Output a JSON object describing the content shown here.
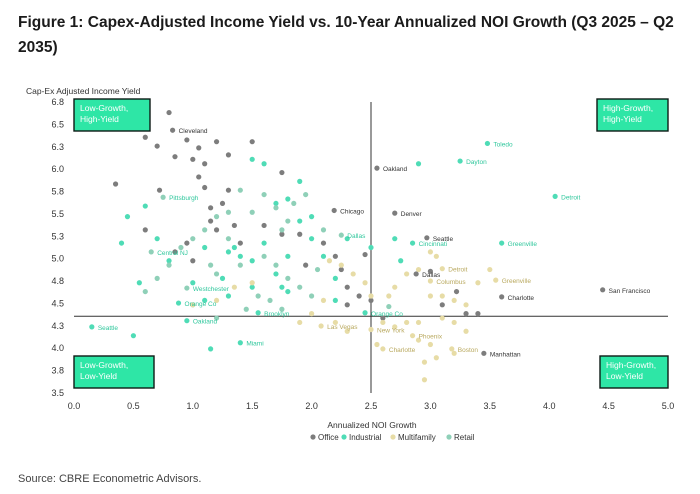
{
  "title": "Figure 1: Capex-Adjusted Income Yield vs. 10-Year Annualized NOI Growth (Q3 2025 – Q2 2035)",
  "source": "Source: CBRE Econometric Advisors.",
  "colors": {
    "Office": "#7d7d7d",
    "Industrial": "#4fdcb6",
    "Multifamily": "#e7dca6",
    "Retail": "#8fd0b8",
    "quadrant_fill": "#2ee6a6",
    "quadrant_border": "#0d1b16",
    "axis": "#333333"
  },
  "chart_data": {
    "type": "scatter",
    "xlabel": "Annualized NOI Growth",
    "ylabel": "Cap-Ex Adjusted Income Yield",
    "xlim": [
      0,
      5
    ],
    "ylim": [
      3.5,
      6.8
    ],
    "xticks": [
      "0.0",
      "0.5",
      "1.0",
      "1.5",
      "2.0",
      "2.5",
      "3.0",
      "3.5",
      "4.0",
      "4.5",
      "5.0"
    ],
    "yticks": [
      "3.5",
      "3.8",
      "4.0",
      "4.3",
      "4.5",
      "4.8",
      "5.0",
      "5.3",
      "5.5",
      "5.8",
      "6.0",
      "6.3",
      "6.5",
      "6.8"
    ],
    "crosshair": {
      "x": 2.5,
      "y": 4.37
    },
    "legend": [
      "Office",
      "Industrial",
      "Multifamily",
      "Retail"
    ],
    "legend_position": "bottom",
    "quadrants": [
      {
        "label": "Low-Growth, High-Yield",
        "position": "top-left"
      },
      {
        "label": "High-Growth, High-Yield",
        "position": "top-right"
      },
      {
        "label": "Low-Growth, Low-Yield",
        "position": "bottom-left"
      },
      {
        "label": "High-Growth, Low-Yield",
        "position": "bottom-right"
      }
    ],
    "labeled_points": [
      {
        "name": "Cleveland",
        "series": "Office",
        "x": 0.83,
        "y": 6.48
      },
      {
        "name": "Oakland",
        "series": "Office",
        "x": 2.55,
        "y": 6.05
      },
      {
        "name": "Toledo",
        "series": "Industrial",
        "x": 3.48,
        "y": 6.33
      },
      {
        "name": "Dayton",
        "series": "Industrial",
        "x": 3.25,
        "y": 6.13
      },
      {
        "name": "Pittsburgh",
        "series": "Retail",
        "x": 0.75,
        "y": 5.72
      },
      {
        "name": "Detroit",
        "series": "Industrial",
        "x": 4.05,
        "y": 5.73
      },
      {
        "name": "Chicago",
        "series": "Office",
        "x": 2.19,
        "y": 5.57
      },
      {
        "name": "Denver",
        "series": "Office",
        "x": 2.7,
        "y": 5.54
      },
      {
        "name": "Dallas",
        "series": "Retail",
        "x": 2.25,
        "y": 5.29
      },
      {
        "name": "Seattle",
        "series": "Office",
        "x": 2.97,
        "y": 5.26
      },
      {
        "name": "Cincinnati",
        "series": "Industrial",
        "x": 2.85,
        "y": 5.2
      },
      {
        "name": "Greenville",
        "series": "Industrial",
        "x": 3.6,
        "y": 5.2
      },
      {
        "name": "Central NJ",
        "series": "Retail",
        "x": 0.65,
        "y": 5.1
      },
      {
        "name": "Detroit",
        "series": "Multifamily",
        "x": 3.1,
        "y": 4.91
      },
      {
        "name": "Dallas",
        "series": "Office",
        "x": 2.88,
        "y": 4.85
      },
      {
        "name": "Greenville",
        "series": "Multifamily",
        "x": 3.55,
        "y": 4.78
      },
      {
        "name": "Columbus",
        "series": "Multifamily",
        "x": 3.0,
        "y": 4.77
      },
      {
        "name": "San Francisco",
        "series": "Office",
        "x": 4.45,
        "y": 4.67
      },
      {
        "name": "Westchester",
        "series": "Retail",
        "x": 0.95,
        "y": 4.69
      },
      {
        "name": "Charlotte",
        "series": "Office",
        "x": 3.6,
        "y": 4.59
      },
      {
        "name": "Orange Co",
        "series": "Industrial",
        "x": 0.88,
        "y": 4.52
      },
      {
        "name": "Brooklyn",
        "series": "Industrial",
        "x": 1.55,
        "y": 4.41
      },
      {
        "name": "Orange Co",
        "series": "Industrial",
        "x": 2.45,
        "y": 4.41
      },
      {
        "name": "Seattle",
        "series": "Industrial",
        "x": 0.15,
        "y": 4.25
      },
      {
        "name": "Oakland",
        "series": "Industrial",
        "x": 0.95,
        "y": 4.32
      },
      {
        "name": "Las Vegas",
        "series": "Multifamily",
        "x": 2.08,
        "y": 4.26
      },
      {
        "name": "New York",
        "series": "Multifamily",
        "x": 2.5,
        "y": 4.22
      },
      {
        "name": "Phoenix",
        "series": "Multifamily",
        "x": 2.85,
        "y": 4.15
      },
      {
        "name": "Miami",
        "series": "Industrial",
        "x": 1.4,
        "y": 4.07
      },
      {
        "name": "Charlotte",
        "series": "Multifamily",
        "x": 2.6,
        "y": 4.0
      },
      {
        "name": "Boston",
        "series": "Multifamily",
        "x": 3.18,
        "y": 4.0
      },
      {
        "name": "Manhattan",
        "series": "Office",
        "x": 3.45,
        "y": 3.95
      }
    ],
    "series": [
      {
        "name": "Office",
        "points": [
          [
            0.8,
            6.68
          ],
          [
            0.6,
            6.4
          ],
          [
            0.7,
            6.3
          ],
          [
            0.95,
            6.37
          ],
          [
            1.05,
            6.28
          ],
          [
            1.5,
            6.35
          ],
          [
            0.35,
            5.87
          ],
          [
            0.72,
            5.8
          ],
          [
            0.85,
            6.18
          ],
          [
            1.0,
            6.15
          ],
          [
            1.1,
            6.1
          ],
          [
            1.2,
            6.35
          ],
          [
            1.3,
            5.8
          ],
          [
            1.05,
            5.95
          ],
          [
            1.1,
            5.83
          ],
          [
            1.15,
            5.6
          ],
          [
            1.15,
            5.45
          ],
          [
            1.2,
            5.35
          ],
          [
            1.25,
            5.65
          ],
          [
            1.4,
            5.2
          ],
          [
            0.6,
            5.35
          ],
          [
            0.85,
            5.1
          ],
          [
            0.95,
            5.2
          ],
          [
            1.0,
            5.0
          ],
          [
            1.35,
            5.4
          ],
          [
            1.6,
            5.4
          ],
          [
            1.75,
            5.3
          ],
          [
            1.9,
            5.3
          ],
          [
            2.1,
            5.2
          ],
          [
            2.2,
            5.05
          ],
          [
            2.25,
            4.9
          ],
          [
            2.3,
            4.7
          ],
          [
            2.4,
            4.6
          ],
          [
            2.3,
            4.5
          ],
          [
            1.95,
            4.95
          ],
          [
            2.5,
            4.55
          ],
          [
            3.3,
            4.4
          ],
          [
            3.4,
            4.4
          ],
          [
            2.6,
            4.35
          ],
          [
            3.0,
            4.88
          ],
          [
            2.45,
            5.07
          ],
          [
            3.22,
            4.65
          ],
          [
            3.1,
            4.5
          ],
          [
            1.3,
            6.2
          ],
          [
            1.75,
            6.0
          ]
        ]
      },
      {
        "name": "Industrial",
        "points": [
          [
            0.5,
            4.15
          ],
          [
            0.55,
            4.75
          ],
          [
            0.4,
            5.2
          ],
          [
            0.45,
            5.5
          ],
          [
            0.6,
            5.62
          ],
          [
            0.7,
            5.25
          ],
          [
            0.8,
            5.0
          ],
          [
            1.0,
            4.75
          ],
          [
            1.1,
            4.55
          ],
          [
            1.15,
            4.0
          ],
          [
            1.3,
            5.1
          ],
          [
            1.35,
            5.15
          ],
          [
            1.5,
            5.0
          ],
          [
            1.6,
            5.2
          ],
          [
            1.7,
            4.85
          ],
          [
            1.8,
            4.65
          ],
          [
            1.9,
            5.45
          ],
          [
            2.0,
            5.25
          ],
          [
            2.1,
            5.05
          ],
          [
            2.2,
            4.8
          ],
          [
            1.5,
            6.15
          ],
          [
            1.6,
            6.1
          ],
          [
            1.7,
            5.65
          ],
          [
            1.8,
            5.7
          ],
          [
            1.9,
            5.9
          ],
          [
            2.0,
            5.5
          ],
          [
            2.3,
            5.25
          ],
          [
            2.5,
            5.15
          ],
          [
            2.7,
            5.25
          ],
          [
            2.75,
            5.0
          ],
          [
            2.2,
            4.55
          ],
          [
            1.3,
            4.6
          ],
          [
            1.0,
            4.5
          ],
          [
            2.9,
            6.1
          ],
          [
            1.5,
            4.7
          ],
          [
            1.75,
            4.7
          ],
          [
            1.25,
            4.8
          ],
          [
            1.8,
            5.05
          ],
          [
            1.4,
            5.05
          ],
          [
            1.1,
            5.15
          ]
        ]
      },
      {
        "name": "Multifamily",
        "points": [
          [
            2.15,
            5.0
          ],
          [
            2.25,
            4.95
          ],
          [
            2.35,
            4.85
          ],
          [
            2.1,
            4.55
          ],
          [
            2.0,
            4.4
          ],
          [
            2.5,
            4.6
          ],
          [
            2.7,
            4.7
          ],
          [
            2.8,
            4.85
          ],
          [
            2.9,
            4.9
          ],
          [
            3.0,
            5.1
          ],
          [
            3.05,
            5.05
          ],
          [
            3.1,
            4.6
          ],
          [
            3.2,
            4.55
          ],
          [
            3.3,
            4.5
          ],
          [
            3.4,
            4.75
          ],
          [
            3.5,
            4.9
          ],
          [
            2.6,
            4.3
          ],
          [
            2.7,
            4.25
          ],
          [
            2.8,
            4.3
          ],
          [
            2.9,
            4.1
          ],
          [
            3.0,
            4.05
          ],
          [
            3.05,
            3.9
          ],
          [
            2.95,
            3.85
          ],
          [
            3.1,
            4.35
          ],
          [
            3.2,
            4.3
          ],
          [
            1.0,
            4.5
          ],
          [
            1.2,
            4.55
          ],
          [
            1.35,
            4.7
          ],
          [
            1.5,
            4.75
          ],
          [
            1.9,
            4.3
          ],
          [
            2.3,
            4.2
          ],
          [
            2.55,
            4.05
          ],
          [
            2.9,
            4.3
          ],
          [
            3.2,
            3.95
          ],
          [
            2.45,
            4.75
          ],
          [
            2.2,
            4.3
          ],
          [
            2.65,
            4.6
          ],
          [
            3.0,
            4.6
          ],
          [
            3.3,
            4.2
          ],
          [
            2.95,
            3.65
          ]
        ]
      },
      {
        "name": "Retail",
        "points": [
          [
            1.8,
            5.45
          ],
          [
            1.7,
            5.6
          ],
          [
            1.6,
            5.75
          ],
          [
            1.5,
            5.55
          ],
          [
            1.4,
            5.8
          ],
          [
            1.3,
            5.55
          ],
          [
            1.2,
            5.5
          ],
          [
            1.1,
            5.35
          ],
          [
            1.0,
            5.25
          ],
          [
            0.9,
            5.15
          ],
          [
            0.8,
            4.95
          ],
          [
            0.7,
            4.8
          ],
          [
            0.6,
            4.65
          ],
          [
            1.6,
            5.05
          ],
          [
            1.7,
            4.95
          ],
          [
            1.8,
            4.8
          ],
          [
            1.9,
            4.7
          ],
          [
            2.0,
            4.6
          ],
          [
            1.4,
            4.95
          ],
          [
            1.45,
            4.45
          ],
          [
            1.55,
            4.6
          ],
          [
            1.65,
            4.55
          ],
          [
            1.75,
            5.35
          ],
          [
            1.85,
            5.65
          ],
          [
            1.95,
            5.75
          ],
          [
            2.05,
            4.9
          ],
          [
            1.2,
            4.85
          ],
          [
            1.3,
            5.25
          ],
          [
            1.15,
            4.95
          ],
          [
            2.65,
            4.48
          ],
          [
            1.75,
            4.45
          ],
          [
            2.1,
            5.35
          ],
          [
            1.2,
            4.35
          ]
        ]
      }
    ]
  }
}
